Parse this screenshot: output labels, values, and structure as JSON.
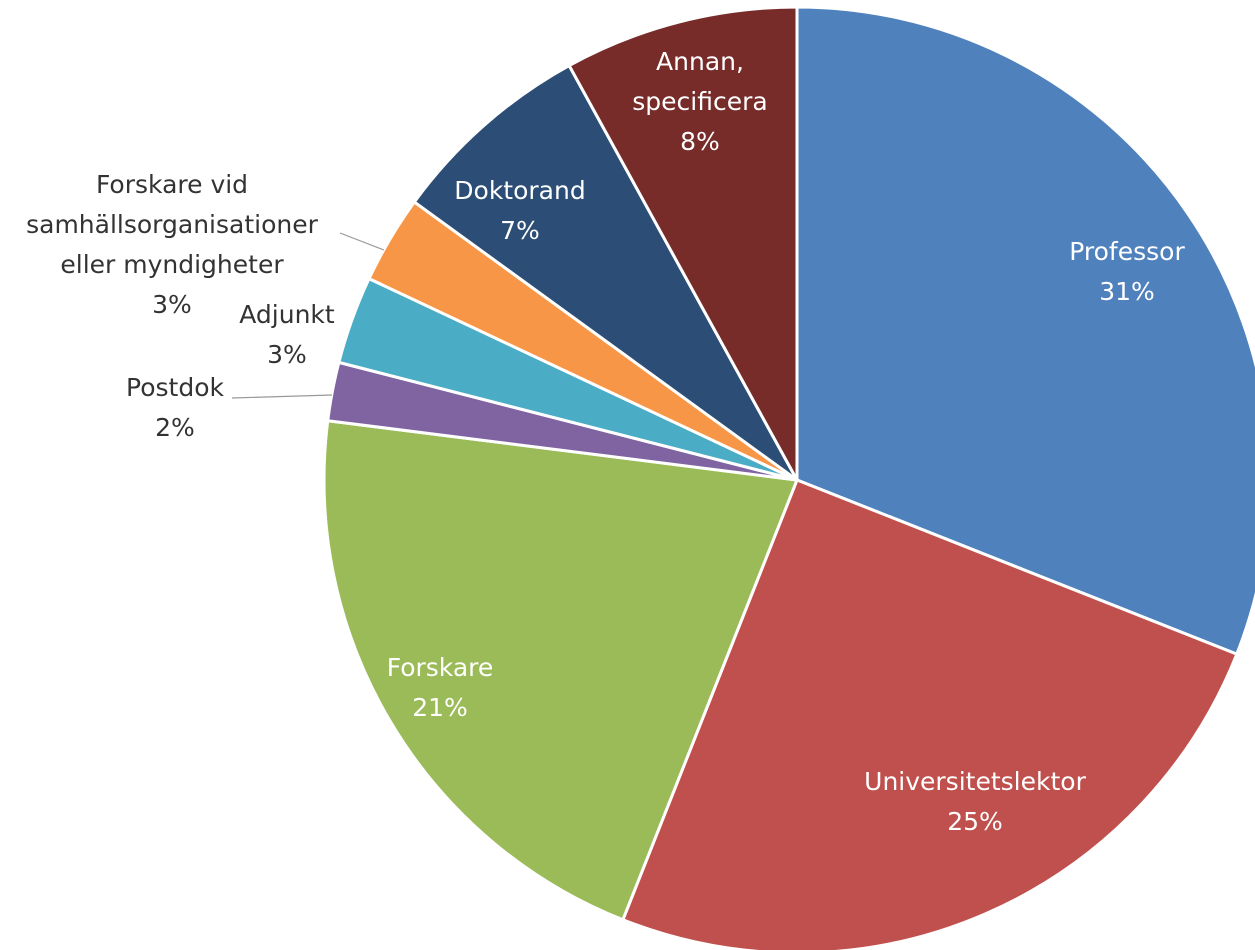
{
  "chart_data": {
    "type": "pie",
    "categories": [
      "Professor",
      "Universitetslektor",
      "Forskare",
      "Postdok",
      "Adjunkt",
      "Forskare vid samhällsorganisationer eller myndigheter",
      "Doktorand",
      "Annan, specificera"
    ],
    "values": [
      31,
      25,
      21,
      2,
      3,
      3,
      7,
      8
    ],
    "value_labels": [
      "31%",
      "25%",
      "21%",
      "2%",
      "3%",
      "3%",
      "7%",
      "8%"
    ],
    "colors": [
      "#4f81bd",
      "#c0504d",
      "#9bbb59",
      "#8064a2",
      "#4bacc6",
      "#f79646",
      "#2c4d75",
      "#772c2a"
    ]
  }
}
